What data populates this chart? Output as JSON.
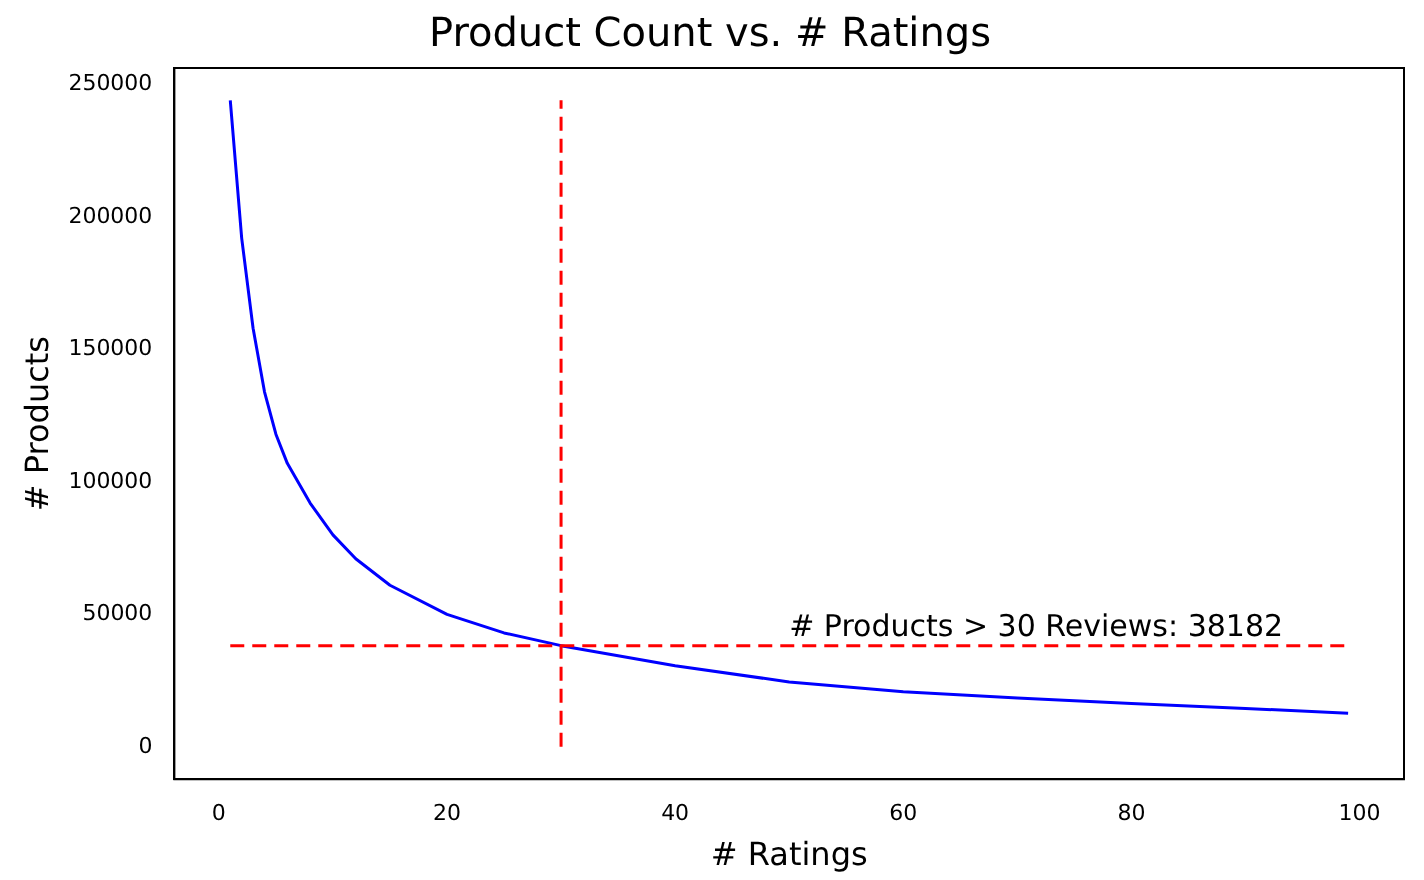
{
  "chart_data": {
    "type": "line",
    "title": "Product Count vs. # Ratings",
    "xlabel": "# Ratings",
    "ylabel": "# Products",
    "series": [
      {
        "color": "#0000ff",
        "x": [
          1,
          2,
          3,
          4,
          5,
          6,
          8,
          10,
          12,
          15,
          20,
          25,
          30,
          40,
          50,
          60,
          70,
          80,
          90,
          99
        ],
        "values": [
          244000,
          192000,
          158000,
          134000,
          118000,
          107000,
          92000,
          80000,
          71000,
          61000,
          50000,
          43000,
          38200,
          30600,
          24500,
          20800,
          18400,
          16400,
          14500,
          12700
        ]
      }
    ],
    "xlim": [
      -3.9,
      103.9
    ],
    "ylim": [
      -12200,
      256200
    ],
    "xticks": [
      0,
      20,
      40,
      60,
      80,
      100
    ],
    "yticks": [
      0,
      50000,
      100000,
      150000,
      200000,
      250000
    ],
    "ref_lines": [
      {
        "axis": "y",
        "value": 38182,
        "color": "#ff0000",
        "line_style": "dashed"
      },
      {
        "axis": "x",
        "value": 30,
        "color": "#ff0000",
        "line_style": "dashed"
      }
    ],
    "annotations": [
      {
        "text": "# Products > 30 Reviews: 38182",
        "x": 50,
        "y": 38182
      }
    ],
    "grid": false,
    "legend": false,
    "marker": "none",
    "line_style": "solid"
  }
}
